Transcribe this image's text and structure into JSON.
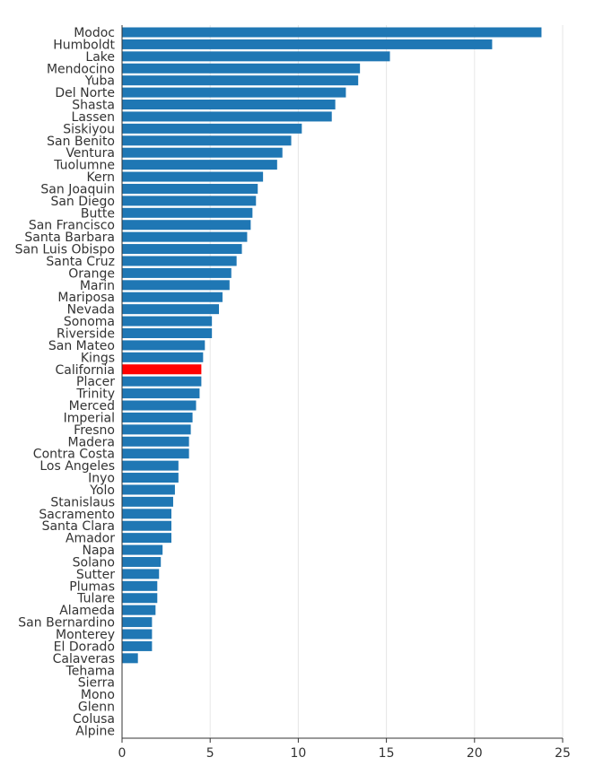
{
  "chart_data": {
    "type": "bar",
    "orientation": "horizontal",
    "title": "",
    "xlabel": "",
    "ylabel": "",
    "xlim": [
      0,
      25
    ],
    "x_ticks": [
      0,
      5,
      10,
      15,
      20,
      25
    ],
    "grid": true,
    "legend": "none",
    "colors": {
      "bar": "#1f77b4",
      "highlight": "#ff0000",
      "grid": "#e6e6e6",
      "axis": "#333333",
      "label": "#333333"
    },
    "highlight_category": "California",
    "categories": [
      "Modoc",
      "Humboldt",
      "Lake",
      "Mendocino",
      "Yuba",
      "Del Norte",
      "Shasta",
      "Lassen",
      "Siskiyou",
      "San Benito",
      "Ventura",
      "Tuolumne",
      "Kern",
      "San Joaquin",
      "San Diego",
      "Butte",
      "San Francisco",
      "Santa Barbara",
      "San Luis Obispo",
      "Santa Cruz",
      "Orange",
      "Marin",
      "Mariposa",
      "Nevada",
      "Sonoma",
      "Riverside",
      "San Mateo",
      "Kings",
      "California",
      "Placer",
      "Trinity",
      "Merced",
      "Imperial",
      "Fresno",
      "Madera",
      "Contra Costa",
      "Los Angeles",
      "Inyo",
      "Yolo",
      "Stanislaus",
      "Sacramento",
      "Santa Clara",
      "Amador",
      "Napa",
      "Solano",
      "Sutter",
      "Plumas",
      "Tulare",
      "Alameda",
      "San Bernardino",
      "Monterey",
      "El Dorado",
      "Calaveras",
      "Tehama",
      "Sierra",
      "Mono",
      "Glenn",
      "Colusa",
      "Alpine"
    ],
    "values": [
      23.8,
      21.0,
      15.2,
      13.5,
      13.4,
      12.7,
      12.1,
      11.9,
      10.2,
      9.6,
      9.1,
      8.8,
      8.0,
      7.7,
      7.6,
      7.4,
      7.3,
      7.1,
      6.8,
      6.5,
      6.2,
      6.1,
      5.7,
      5.5,
      5.1,
      5.1,
      4.7,
      4.6,
      4.5,
      4.5,
      4.4,
      4.2,
      4.0,
      3.9,
      3.8,
      3.8,
      3.2,
      3.2,
      3.0,
      2.9,
      2.8,
      2.8,
      2.8,
      2.3,
      2.2,
      2.1,
      2.0,
      2.0,
      1.9,
      1.7,
      1.7,
      1.7,
      0.9,
      0,
      0,
      0,
      0,
      0,
      0
    ]
  }
}
